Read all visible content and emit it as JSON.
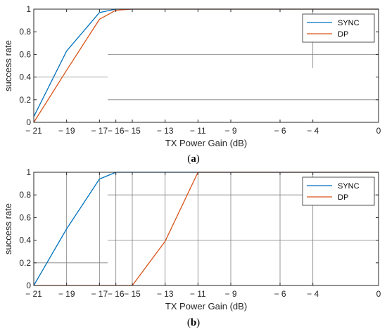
{
  "colors": {
    "sync": "#0072bd",
    "dp": "#d95319",
    "axis": "#262626",
    "grid": "#808080"
  },
  "chart_data": [
    {
      "type": "line",
      "panel_label": "a",
      "xlabel": "TX Power Gain (dB)",
      "ylabel": "success rate",
      "xlim": [
        -21,
        0
      ],
      "ylim": [
        0,
        1
      ],
      "xticks": [
        -21,
        -19,
        -17,
        -16,
        -15,
        -13,
        -11,
        -9,
        -6,
        -4,
        0
      ],
      "xtick_labels": [
        "− 21",
        "− 19",
        "− 17",
        "− 16",
        "− 15",
        "− 13",
        "− 11",
        "− 9",
        "− 6",
        "− 4",
        "0"
      ],
      "yticks": [
        0,
        0.2,
        0.4,
        0.6,
        0.8,
        1
      ],
      "ytick_labels": [
        "0",
        "0.2",
        "0.4",
        "0.6",
        "0.8",
        "1"
      ],
      "legend_position": "top-right",
      "grid": {
        "horizontal": [
          {
            "y": 0.2,
            "x0": -16.5,
            "x1": 0
          },
          {
            "y": 0.4,
            "x0": -21,
            "x1": -16.5
          },
          {
            "y": 0.6,
            "x0": -16.5,
            "x1": 0
          }
        ],
        "vertical": [
          {
            "x": -4,
            "y0": 0.48,
            "y1": 1
          }
        ]
      },
      "series": [
        {
          "name": "SYNC",
          "color_key": "sync",
          "x": [
            -21,
            -19,
            -17,
            -16,
            -15,
            -13,
            -11,
            -9,
            -6,
            -4,
            0
          ],
          "y": [
            0.05,
            0.63,
            0.97,
            1,
            1,
            1,
            1,
            1,
            1,
            1,
            1
          ]
        },
        {
          "name": "DP",
          "color_key": "dp",
          "x": [
            -21,
            -19,
            -17,
            -16,
            -15,
            -13,
            -11,
            -9,
            -6,
            -4,
            0
          ],
          "y": [
            0,
            0.46,
            0.91,
            0.99,
            1,
            1,
            1,
            1,
            1,
            1,
            1
          ]
        }
      ]
    },
    {
      "type": "line",
      "panel_label": "b",
      "xlabel": "TX Power Gain (dB)",
      "ylabel": "success rate",
      "xlim": [
        -21,
        0
      ],
      "ylim": [
        0,
        1
      ],
      "xticks": [
        -21,
        -19,
        -17,
        -16,
        -15,
        -13,
        -11,
        -9,
        -6,
        -4,
        0
      ],
      "xtick_labels": [
        "− 21",
        "− 19",
        "− 17",
        "− 16",
        "− 15",
        "− 13",
        "− 11",
        "− 9",
        "− 6",
        "− 4",
        "0"
      ],
      "yticks": [
        0,
        0.2,
        0.4,
        0.6,
        0.8,
        1
      ],
      "ytick_labels": [
        "0",
        "0.2",
        "0.4",
        "0.6",
        "0.8",
        "1"
      ],
      "legend_position": "top-right",
      "grid": {
        "horizontal": [
          {
            "y": 0.2,
            "x0": -21,
            "x1": -16.5
          },
          {
            "y": 0.4,
            "x0": -16.5,
            "x1": 0
          },
          {
            "y": 0.8,
            "x0": -16.5,
            "x1": 0
          }
        ],
        "vertical": [
          {
            "x": -19,
            "y0": 0,
            "y1": 1
          },
          {
            "x": -17,
            "y0": 0,
            "y1": 1
          },
          {
            "x": -16,
            "y0": 0,
            "y1": 1
          },
          {
            "x": -15,
            "y0": 0,
            "y1": 1
          },
          {
            "x": -13,
            "y0": 0,
            "y1": 1
          },
          {
            "x": -11,
            "y0": 0,
            "y1": 1
          },
          {
            "x": -9,
            "y0": 0,
            "y1": 1
          },
          {
            "x": -6,
            "y0": 0,
            "y1": 1
          },
          {
            "x": -4,
            "y0": 0,
            "y1": 1
          }
        ]
      },
      "series": [
        {
          "name": "SYNC",
          "color_key": "sync",
          "x": [
            -21,
            -19,
            -17,
            -16,
            -15,
            -13,
            -11,
            -9,
            -6,
            -4,
            0
          ],
          "y": [
            0,
            0.5,
            0.94,
            1,
            1,
            1,
            1,
            1,
            1,
            1,
            1
          ]
        },
        {
          "name": "DP",
          "color_key": "dp",
          "x": [
            -21,
            -19,
            -17,
            -16,
            -15,
            -13,
            -11,
            -9,
            -6,
            -4,
            0
          ],
          "y": [
            0,
            0,
            0,
            0,
            0,
            0.39,
            1,
            1,
            1,
            1,
            1
          ]
        }
      ]
    }
  ]
}
